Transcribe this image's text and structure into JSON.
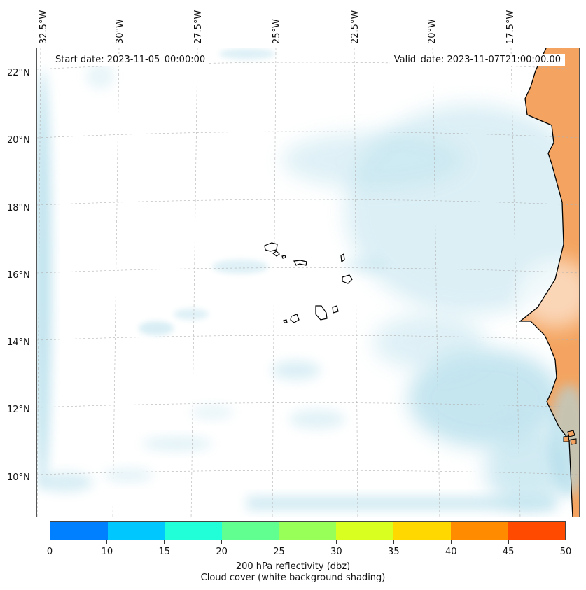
{
  "map": {
    "start_date_label": "Start date: 2023-11-05_00:00:00",
    "valid_date_label": "Valid_date: 2023-11-07T21:00:00.00",
    "longitude_labels": [
      "32.5°W",
      "30°W",
      "27.5°W",
      "25°W",
      "22.5°W",
      "20°W",
      "17.5°W"
    ],
    "latitude_labels": [
      "22°N",
      "20°N",
      "18°N",
      "16°N",
      "14°N",
      "12°N",
      "10°N"
    ],
    "region": "Cabo Verde islands and West African coast",
    "colors": {
      "cloud": "#a9d9e8",
      "land": "#f4a460",
      "gridline": "#b0b0b0",
      "coastline": "#000000"
    }
  },
  "colorbar": {
    "ticks": [
      "0",
      "10",
      "15",
      "20",
      "25",
      "30",
      "35",
      "40",
      "45",
      "50"
    ],
    "colors": [
      "#0080ff",
      "#00c8ff",
      "#20ffd8",
      "#60ff90",
      "#98ff58",
      "#d8ff20",
      "#ffd800",
      "#ff8c00",
      "#ff4a00"
    ],
    "label_line1": "200 hPa reflectivity (dbz)",
    "label_line2": "Cloud cover (white background shading)"
  }
}
